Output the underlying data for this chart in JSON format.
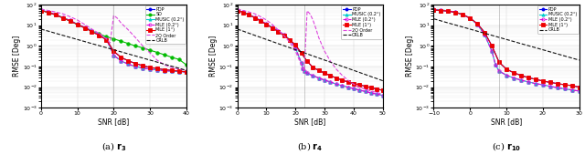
{
  "subplots": [
    {
      "title_text": "(a) ",
      "title_sub": "r",
      "title_n": "3",
      "xlabel": "SNR [dB]",
      "ylabel": "RMSE [Deg]",
      "xlim": [
        0,
        40
      ],
      "ylim": [
        0.001,
        100.0
      ],
      "xticks": [
        0,
        10,
        20,
        30,
        40
      ],
      "vline": 20,
      "curves": [
        {
          "label": "PDP",
          "color": "#0000EE",
          "marker": "o",
          "linestyle": "-",
          "mfc": "#0000EE",
          "x": [
            0,
            2,
            4,
            6,
            8,
            10,
            12,
            14,
            16,
            18,
            20,
            22,
            24,
            26,
            28,
            30,
            32,
            34,
            36,
            38,
            40
          ],
          "y": [
            52,
            42,
            32,
            23,
            16,
            11,
            7.5,
            5,
            3.2,
            2.0,
            0.55,
            0.28,
            0.19,
            0.14,
            0.11,
            0.09,
            0.08,
            0.07,
            0.065,
            0.06,
            0.055
          ]
        },
        {
          "label": "SD",
          "color": "#00BB00",
          "marker": "o",
          "linestyle": "-",
          "mfc": "#00BB00",
          "x": [
            0,
            2,
            4,
            6,
            8,
            10,
            12,
            14,
            16,
            18,
            20,
            22,
            24,
            26,
            28,
            30,
            32,
            34,
            36,
            38,
            40
          ],
          "y": [
            52,
            42,
            32,
            23,
            16,
            11,
            7.5,
            5.2,
            3.8,
            2.8,
            2.2,
            1.7,
            1.3,
            1.0,
            0.8,
            0.62,
            0.48,
            0.37,
            0.28,
            0.22,
            0.12
          ]
        },
        {
          "label": "MUSIC (0.2°)",
          "color": "#00CCCC",
          "marker": "^",
          "linestyle": "-",
          "mfc": "#00CCCC",
          "x": [
            0,
            2,
            4,
            6,
            8,
            10,
            12,
            14,
            16,
            18,
            20,
            22,
            24,
            26,
            28,
            30,
            32,
            34,
            36,
            38,
            40
          ],
          "y": [
            54,
            44,
            34,
            24,
            17,
            11.5,
            8,
            5.5,
            3.5,
            2.1,
            0.35,
            0.19,
            0.13,
            0.1,
            0.085,
            0.075,
            0.068,
            0.063,
            0.059,
            0.057,
            0.054
          ]
        },
        {
          "label": "MLE (0.2°)",
          "color": "#DD00DD",
          "marker": "o",
          "linestyle": "--",
          "mfc": "none",
          "x": [
            0,
            2,
            4,
            6,
            8,
            10,
            12,
            14,
            16,
            18,
            20,
            22,
            24,
            26,
            28,
            30,
            32,
            34,
            36,
            38,
            40
          ],
          "y": [
            54,
            44,
            34,
            24,
            17,
            11.5,
            8,
            5.5,
            3.5,
            2.1,
            0.35,
            0.19,
            0.13,
            0.1,
            0.085,
            0.075,
            0.068,
            0.063,
            0.059,
            0.057,
            0.054
          ]
        },
        {
          "label": "MLE (1°)",
          "color": "#EE0000",
          "marker": "s",
          "linestyle": "-",
          "mfc": "#EE0000",
          "x": [
            0,
            2,
            4,
            6,
            8,
            10,
            12,
            14,
            16,
            18,
            20,
            22,
            24,
            26,
            28,
            30,
            32,
            34,
            36,
            38,
            40
          ],
          "y": [
            52,
            42,
            32,
            23,
            16,
            11,
            7.5,
            5,
            3.2,
            2.0,
            0.55,
            0.28,
            0.19,
            0.14,
            0.11,
            0.09,
            0.08,
            0.07,
            0.065,
            0.06,
            0.055
          ]
        },
        {
          "label": "2Q Order",
          "color": "#DD44DD",
          "marker": "",
          "linestyle": "--",
          "mfc": "none",
          "x": [
            0,
            2,
            4,
            6,
            8,
            10,
            12,
            14,
            16,
            18,
            19,
            20,
            21,
            22,
            24,
            26,
            28,
            30,
            32,
            34,
            36,
            38,
            40
          ],
          "y": [
            60,
            52,
            44,
            36,
            26,
            18,
            11,
            6.5,
            4.0,
            2.2,
            1.4,
            30,
            22,
            13,
            6,
            2.5,
            1.0,
            0.45,
            0.2,
            0.12,
            0.09,
            0.075,
            0.065
          ]
        },
        {
          "label": "CRLB",
          "color": "#111111",
          "marker": "",
          "linestyle": "--",
          "mfc": "none",
          "x": [
            0,
            2,
            4,
            6,
            8,
            10,
            12,
            14,
            16,
            18,
            20,
            22,
            24,
            26,
            28,
            30,
            32,
            34,
            36,
            38,
            40
          ],
          "y": [
            6.5,
            5.2,
            4.1,
            3.25,
            2.58,
            2.05,
            1.63,
            1.29,
            1.03,
            0.82,
            0.65,
            0.516,
            0.41,
            0.325,
            0.258,
            0.205,
            0.163,
            0.129,
            0.103,
            0.082,
            0.065
          ]
        }
      ]
    },
    {
      "title_text": "(b) ",
      "title_sub": "r",
      "title_n": "4",
      "xlabel": "SNR [dB]",
      "ylabel": "RMSE [Deg]",
      "xlim": [
        0,
        50
      ],
      "ylim": [
        0.001,
        100.0
      ],
      "xticks": [
        0,
        10,
        20,
        30,
        40,
        50
      ],
      "vline": 23,
      "curves": [
        {
          "label": "PDP",
          "color": "#0000EE",
          "marker": "o",
          "linestyle": "-",
          "mfc": "#0000EE",
          "x": [
            0,
            2,
            4,
            6,
            8,
            10,
            12,
            14,
            16,
            18,
            20,
            22,
            24,
            26,
            28,
            30,
            32,
            34,
            36,
            38,
            40,
            42,
            44,
            46,
            48,
            50
          ],
          "y": [
            52,
            42,
            32,
            23,
            16,
            11,
            7.5,
            5,
            3.2,
            2.0,
            1.1,
            0.45,
            0.18,
            0.09,
            0.065,
            0.048,
            0.036,
            0.028,
            0.022,
            0.018,
            0.015,
            0.013,
            0.011,
            0.0095,
            0.0082,
            0.007
          ]
        },
        {
          "label": "MUSIC (0.2°)",
          "color": "#00CCCC",
          "marker": "^",
          "linestyle": "-",
          "mfc": "#00CCCC",
          "x": [
            0,
            2,
            4,
            6,
            8,
            10,
            12,
            14,
            16,
            18,
            20,
            22,
            22.5,
            23,
            24,
            26,
            28,
            30,
            32,
            34,
            36,
            38,
            40,
            42,
            44,
            46,
            48,
            50
          ],
          "y": [
            54,
            44,
            34,
            24,
            17,
            11.5,
            8,
            5.5,
            3.5,
            2.0,
            0.8,
            0.15,
            0.08,
            0.06,
            0.048,
            0.036,
            0.028,
            0.022,
            0.018,
            0.014,
            0.012,
            0.01,
            0.0085,
            0.0072,
            0.0062,
            0.0053,
            0.0046,
            0.004
          ]
        },
        {
          "label": "MLE (0.2°)",
          "color": "#DD00DD",
          "marker": "o",
          "linestyle": "--",
          "mfc": "none",
          "x": [
            0,
            2,
            4,
            6,
            8,
            10,
            12,
            14,
            16,
            18,
            20,
            22,
            22.5,
            23,
            24,
            26,
            28,
            30,
            32,
            34,
            36,
            38,
            40,
            42,
            44,
            46,
            48,
            50
          ],
          "y": [
            54,
            44,
            34,
            24,
            17,
            11.5,
            8,
            5.5,
            3.5,
            2.0,
            0.8,
            0.15,
            0.08,
            0.06,
            0.048,
            0.036,
            0.028,
            0.022,
            0.018,
            0.014,
            0.012,
            0.01,
            0.0085,
            0.0072,
            0.0062,
            0.0053,
            0.0046,
            0.004
          ]
        },
        {
          "label": "MLE (1°)",
          "color": "#EE0000",
          "marker": "s",
          "linestyle": "-",
          "mfc": "#EE0000",
          "x": [
            0,
            2,
            4,
            6,
            8,
            10,
            12,
            14,
            16,
            18,
            20,
            22,
            24,
            26,
            28,
            30,
            32,
            34,
            36,
            38,
            40,
            42,
            44,
            46,
            48,
            50
          ],
          "y": [
            52,
            42,
            32,
            23,
            16,
            11,
            7.5,
            5,
            3.2,
            2.0,
            1.1,
            0.45,
            0.18,
            0.09,
            0.065,
            0.048,
            0.036,
            0.028,
            0.022,
            0.018,
            0.015,
            0.013,
            0.011,
            0.0095,
            0.0082,
            0.007
          ]
        },
        {
          "label": "2Q Order",
          "color": "#DD44DD",
          "marker": "",
          "linestyle": "--",
          "mfc": "none",
          "x": [
            0,
            2,
            4,
            6,
            8,
            10,
            12,
            14,
            16,
            18,
            20,
            22,
            23,
            24,
            25,
            26,
            27,
            28,
            30,
            32,
            34,
            36,
            38,
            40,
            42,
            44,
            46,
            48,
            50
          ],
          "y": [
            60,
            52,
            44,
            36,
            26,
            18,
            11,
            6,
            3.2,
            1.5,
            0.55,
            0.12,
            0.065,
            50,
            35,
            18,
            7,
            2.5,
            0.55,
            0.18,
            0.075,
            0.038,
            0.022,
            0.014,
            0.01,
            0.008,
            0.0065,
            0.0055,
            0.0045
          ]
        },
        {
          "label": "CRLB",
          "color": "#111111",
          "marker": "",
          "linestyle": "--",
          "mfc": "none",
          "x": [
            0,
            2,
            4,
            6,
            8,
            10,
            12,
            14,
            16,
            18,
            20,
            22,
            24,
            26,
            28,
            30,
            32,
            34,
            36,
            38,
            40,
            42,
            44,
            46,
            48,
            50
          ],
          "y": [
            6.5,
            5.2,
            4.1,
            3.25,
            2.58,
            2.05,
            1.63,
            1.29,
            1.03,
            0.82,
            0.65,
            0.516,
            0.41,
            0.325,
            0.258,
            0.205,
            0.163,
            0.129,
            0.103,
            0.082,
            0.065,
            0.0516,
            0.041,
            0.0325,
            0.0258,
            0.0205
          ]
        }
      ]
    },
    {
      "title_text": "(c) ",
      "title_sub": "r",
      "title_n": "10",
      "xlabel": "SNR [dB]",
      "ylabel": "RMSE [Deg]",
      "xlim": [
        -10,
        30
      ],
      "ylim": [
        0.001,
        100.0
      ],
      "xticks": [
        -10,
        0,
        10,
        20,
        30
      ],
      "vline": 8,
      "curves": [
        {
          "label": "PDP",
          "color": "#0000EE",
          "marker": "o",
          "linestyle": "-",
          "mfc": "#0000EE",
          "x": [
            -10,
            -8,
            -6,
            -4,
            -2,
            0,
            2,
            4,
            6,
            8,
            10,
            12,
            14,
            16,
            18,
            20,
            22,
            24,
            26,
            28,
            30
          ],
          "y": [
            55,
            52,
            48,
            42,
            33,
            22,
            12,
            4.5,
            1.0,
            0.16,
            0.075,
            0.05,
            0.037,
            0.029,
            0.024,
            0.02,
            0.017,
            0.015,
            0.013,
            0.012,
            0.01
          ]
        },
        {
          "label": "MUSIC (0.2°)",
          "color": "#00CCCC",
          "marker": "^",
          "linestyle": "-",
          "mfc": "#00CCCC",
          "x": [
            -10,
            -8,
            -6,
            -4,
            -2,
            0,
            2,
            4,
            6,
            7,
            8,
            10,
            12,
            14,
            16,
            18,
            20,
            22,
            24,
            26,
            28,
            30
          ],
          "y": [
            58,
            55,
            50,
            43,
            33,
            22,
            11,
            3.5,
            0.55,
            0.12,
            0.06,
            0.038,
            0.028,
            0.022,
            0.018,
            0.015,
            0.013,
            0.011,
            0.0095,
            0.0083,
            0.0073,
            0.0065
          ]
        },
        {
          "label": "MLE (0.2°)",
          "color": "#DD00DD",
          "marker": "o",
          "linestyle": "--",
          "mfc": "none",
          "x": [
            -10,
            -8,
            -6,
            -4,
            -2,
            0,
            2,
            4,
            6,
            7,
            8,
            10,
            12,
            14,
            16,
            18,
            20,
            22,
            24,
            26,
            28,
            30
          ],
          "y": [
            58,
            55,
            50,
            43,
            33,
            22,
            11,
            3.5,
            0.55,
            0.12,
            0.06,
            0.038,
            0.028,
            0.022,
            0.018,
            0.015,
            0.013,
            0.011,
            0.0095,
            0.0083,
            0.0073,
            0.0065
          ]
        },
        {
          "label": "MLE (1°)",
          "color": "#EE0000",
          "marker": "s",
          "linestyle": "-",
          "mfc": "#EE0000",
          "x": [
            -10,
            -8,
            -6,
            -4,
            -2,
            0,
            2,
            4,
            6,
            8,
            10,
            12,
            14,
            16,
            18,
            20,
            22,
            24,
            26,
            28,
            30
          ],
          "y": [
            55,
            52,
            48,
            42,
            33,
            22,
            12,
            4.5,
            1.0,
            0.16,
            0.075,
            0.05,
            0.037,
            0.029,
            0.024,
            0.02,
            0.017,
            0.015,
            0.013,
            0.012,
            0.01
          ]
        },
        {
          "label": "CRLB",
          "color": "#111111",
          "marker": "",
          "linestyle": "--",
          "mfc": "none",
          "x": [
            -10,
            -8,
            -6,
            -4,
            -2,
            0,
            2,
            4,
            6,
            8,
            10,
            12,
            14,
            16,
            18,
            20,
            22,
            24,
            26,
            28,
            30
          ],
          "y": [
            20.5,
            16.3,
            12.9,
            10.3,
            8.2,
            6.5,
            5.16,
            4.1,
            3.25,
            2.58,
            2.05,
            1.63,
            1.29,
            1.03,
            0.82,
            0.65,
            0.516,
            0.41,
            0.325,
            0.258,
            0.205
          ]
        }
      ]
    }
  ]
}
